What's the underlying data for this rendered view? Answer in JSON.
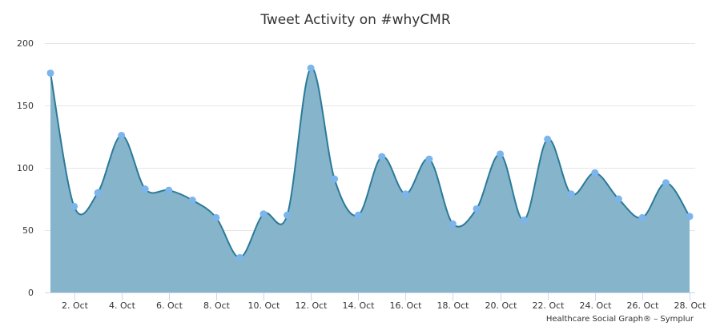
{
  "chart_data": {
    "type": "area",
    "title": "Tweet Activity on #whyCMR",
    "xlabel": "",
    "ylabel": "",
    "ylim": [
      0,
      200
    ],
    "yticks": [
      0,
      50,
      100,
      150,
      200
    ],
    "x": [
      1,
      2,
      3,
      4,
      5,
      6,
      7,
      8,
      9,
      10,
      11,
      12,
      13,
      14,
      15,
      16,
      17,
      18,
      19,
      20,
      21,
      22,
      23,
      24,
      25,
      26,
      27,
      28
    ],
    "xtick_labels": [
      "2. Oct",
      "4. Oct",
      "6. Oct",
      "8. Oct",
      "10. Oct",
      "12. Oct",
      "14. Oct",
      "16. Oct",
      "18. Oct",
      "20. Oct",
      "22. Oct",
      "24. Oct",
      "26. Oct",
      "28. Oct"
    ],
    "xtick_days": [
      2,
      4,
      6,
      8,
      10,
      12,
      14,
      16,
      18,
      20,
      22,
      24,
      26,
      28
    ],
    "series": [
      {
        "name": "Tweets",
        "values": [
          176,
          69,
          80,
          126,
          83,
          82,
          74,
          60,
          28,
          63,
          62,
          180,
          91,
          62,
          109,
          79,
          107,
          55,
          67,
          111,
          58,
          123,
          79,
          96,
          75,
          60,
          88,
          61
        ]
      }
    ],
    "grid": true,
    "legend": "none",
    "colors": {
      "fill": "#86b4cb",
      "line": "#2b7a99",
      "marker": "#7cb5ec",
      "grid": "#e6e6e6"
    }
  },
  "credit": "Healthcare Social Graph® – Symplur"
}
